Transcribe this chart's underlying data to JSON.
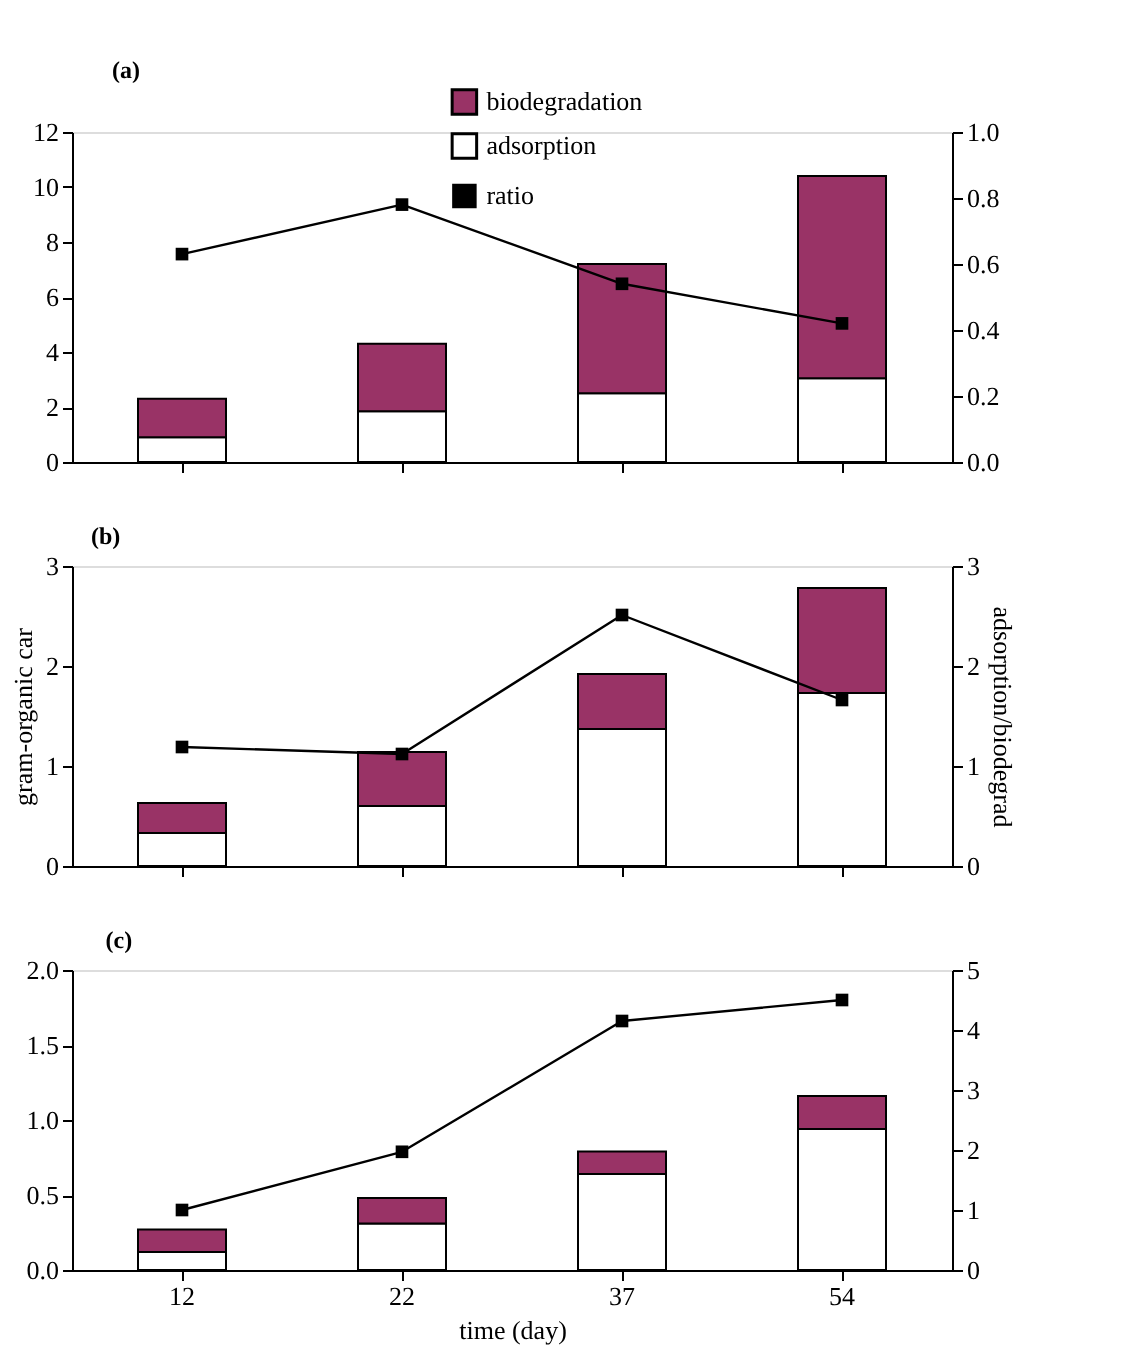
{
  "chart_data": [
    {
      "type": "bar",
      "stacked": true,
      "title": "(a)",
      "categories": [
        null,
        null,
        null,
        null
      ],
      "legend": "top",
      "marker": "square",
      "tick_labels": "y",
      "grid": false,
      "series": [
        {
          "name": "adsorption",
          "color": "#ffffff",
          "values": [
            0.9,
            1.85,
            2.5,
            3.05
          ]
        },
        {
          "name": "biodegradation",
          "color": "#993366",
          "values": [
            1.4,
            2.45,
            4.7,
            7.35
          ]
        },
        {
          "name": "ratio",
          "type": "line",
          "axis": "y2",
          "color": "#000000",
          "values": [
            0.63,
            0.78,
            0.54,
            0.42
          ]
        }
      ],
      "ylim": [
        0,
        12
      ],
      "yticks": [
        0,
        2,
        4,
        6,
        8,
        10,
        12
      ],
      "y2lim": [
        0,
        1
      ],
      "y2ticks": [
        {
          "value": 0,
          "label": "0.0"
        },
        {
          "value": 0.2,
          "label": "0.2"
        },
        {
          "value": 0.4,
          "label": "0.4"
        },
        {
          "value": 0.6,
          "label": "0.6"
        },
        {
          "value": 0.8,
          "label": "0.8"
        },
        {
          "value": 1,
          "label": "1.0"
        }
      ]
    },
    {
      "type": "bar",
      "stacked": true,
      "title": "(b)",
      "categories": [
        null,
        null,
        null,
        null
      ],
      "marker": "square",
      "tick_labels": "y",
      "grid": false,
      "ylabel": "gram-organic car",
      "y2label": "adsorption/biodegrad",
      "series": [
        {
          "color": "#ffffff",
          "values": [
            0.33,
            0.6,
            1.37,
            1.73
          ]
        },
        {
          "color": "#993366",
          "values": [
            0.3,
            0.54,
            0.55,
            1.05
          ]
        },
        {
          "type": "line",
          "axis": "y2",
          "color": "#000000",
          "values": [
            1.19,
            1.12,
            2.51,
            1.66
          ]
        }
      ],
      "ylim": [
        0,
        3
      ],
      "yticks": [
        0,
        1,
        2,
        3
      ],
      "y2lim": [
        0,
        3
      ],
      "y2ticks": [
        0,
        1,
        2,
        3
      ]
    },
    {
      "type": "bar",
      "stacked": true,
      "title": "(c)",
      "categories": [
        "12",
        "22",
        "37",
        "54"
      ],
      "marker": "square",
      "grid": false,
      "xlabel": "time (day)",
      "series": [
        {
          "color": "#ffffff",
          "values": [
            0.12,
            0.31,
            0.64,
            0.94
          ]
        },
        {
          "color": "#993366",
          "values": [
            0.15,
            0.17,
            0.15,
            0.22
          ]
        },
        {
          "type": "line",
          "axis": "y2",
          "color": "#000000",
          "values": [
            1.0,
            1.97,
            4.15,
            4.5
          ]
        }
      ],
      "ylim": [
        0,
        2
      ],
      "yticks": [
        {
          "value": 0,
          "label": "0.0"
        },
        {
          "value": 0.5,
          "label": "0.5"
        },
        {
          "value": 1,
          "label": "1.0"
        },
        {
          "value": 1.5,
          "label": "1.5"
        },
        {
          "value": 2,
          "label": "2.0"
        }
      ],
      "y2lim": [
        0,
        5
      ],
      "y2ticks": [
        0,
        1,
        2,
        3,
        4,
        5
      ]
    }
  ]
}
